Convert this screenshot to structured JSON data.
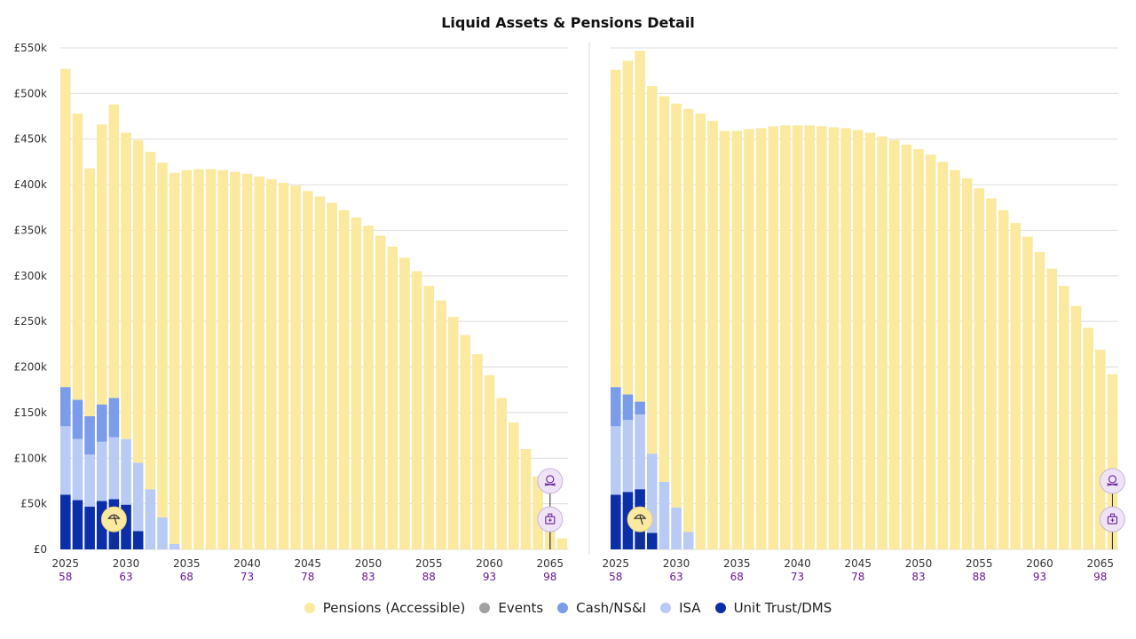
{
  "title": "Liquid Assets & Pensions Detail",
  "colors": {
    "pensions": "#fbe9a0",
    "events": "#a0a0a0",
    "cash": "#7b9ce8",
    "isa": "#b9cbf5",
    "unit_trust": "#0a2fa8",
    "event_marker_yellow": "#fbe9a0",
    "event_marker_lilac": "#efe4f7",
    "age_text": "#6a1b9a"
  },
  "legend": [
    {
      "label": "Pensions (Accessible)",
      "color": "#fbe9a0"
    },
    {
      "label": "Events",
      "color": "#a0a0a0"
    },
    {
      "label": "Cash/NS&I",
      "color": "#7b9ce8"
    },
    {
      "label": "ISA",
      "color": "#b9cbf5"
    },
    {
      "label": "Unit Trust/DMS",
      "color": "#0a2fa8"
    }
  ],
  "y_ticks": [
    "£0",
    "£50k",
    "£100k",
    "£150k",
    "£200k",
    "£250k",
    "£300k",
    "£350k",
    "£400k",
    "£450k",
    "£500k",
    "£550k"
  ],
  "x_tick_labels": [
    {
      "year": "2025",
      "age": "58"
    },
    {
      "year": "2030",
      "age": "63"
    },
    {
      "year": "2035",
      "age": "68"
    },
    {
      "year": "2040",
      "age": "73"
    },
    {
      "year": "2045",
      "age": "78"
    },
    {
      "year": "2050",
      "age": "83"
    },
    {
      "year": "2055",
      "age": "88"
    },
    {
      "year": "2060",
      "age": "93"
    },
    {
      "year": "2065",
      "age": "98"
    }
  ],
  "event_icons": {
    "retire": "beach-umbrella-icon",
    "death": "skull-icon",
    "care": "medical-bag-icon"
  },
  "chart_data": [
    {
      "type": "bar",
      "stacked": true,
      "title": "Liquid Assets & Pensions Detail",
      "x_start": 2025,
      "x_end": 2066,
      "ylim": [
        0,
        550000
      ],
      "grid": true,
      "legend_position": "bottom",
      "series": [
        {
          "name": "Unit Trust/DMS",
          "values": [
            60000,
            54000,
            47000,
            53000,
            55000,
            49000,
            20000,
            0,
            0,
            0,
            0,
            0,
            0,
            0,
            0,
            0,
            0,
            0,
            0,
            0,
            0,
            0,
            0,
            0,
            0,
            0,
            0,
            0,
            0,
            0,
            0,
            0,
            0,
            0,
            0,
            0,
            0,
            0,
            0,
            0,
            0,
            0
          ]
        },
        {
          "name": "ISA",
          "values": [
            75000,
            67000,
            57000,
            65000,
            68000,
            72000,
            75000,
            66000,
            35000,
            6000,
            0,
            0,
            0,
            0,
            0,
            0,
            0,
            0,
            0,
            0,
            0,
            0,
            0,
            0,
            0,
            0,
            0,
            0,
            0,
            0,
            0,
            0,
            0,
            0,
            0,
            0,
            0,
            0,
            0,
            0,
            0,
            0
          ]
        },
        {
          "name": "Cash/NS&I",
          "values": [
            43000,
            43000,
            42000,
            41000,
            43000,
            0,
            0,
            0,
            0,
            0,
            0,
            0,
            0,
            0,
            0,
            0,
            0,
            0,
            0,
            0,
            0,
            0,
            0,
            0,
            0,
            0,
            0,
            0,
            0,
            0,
            0,
            0,
            0,
            0,
            0,
            0,
            0,
            0,
            0,
            0,
            0,
            0
          ]
        },
        {
          "name": "Events",
          "values": [
            0,
            0,
            0,
            0,
            0,
            0,
            0,
            0,
            0,
            0,
            0,
            0,
            0,
            0,
            0,
            0,
            0,
            0,
            0,
            0,
            0,
            0,
            0,
            0,
            0,
            0,
            0,
            0,
            0,
            0,
            0,
            0,
            0,
            0,
            0,
            0,
            0,
            0,
            0,
            0,
            0,
            0
          ]
        },
        {
          "name": "Pensions (Accessible)",
          "values": [
            349000,
            314000,
            272000,
            307000,
            322000,
            336000,
            354000,
            370000,
            389000,
            407000,
            416000,
            417000,
            417000,
            416000,
            414000,
            412000,
            409000,
            406000,
            402000,
            399000,
            393000,
            387000,
            380000,
            372000,
            364000,
            355000,
            344000,
            332000,
            320000,
            305000,
            289000,
            273000,
            255000,
            235000,
            214000,
            191000,
            166000,
            139000,
            110000,
            80000,
            46000,
            12000
          ]
        }
      ],
      "events": [
        {
          "year": 2029,
          "icon": "beach-umbrella-icon",
          "value": 33000
        },
        {
          "year": 2065,
          "icon": "skull-icon",
          "value": 75000
        },
        {
          "year": 2065,
          "icon": "medical-bag-icon",
          "value": 33000
        }
      ]
    },
    {
      "type": "bar",
      "stacked": true,
      "title": "Liquid Assets & Pensions Detail",
      "x_start": 2025,
      "x_end": 2066,
      "ylim": [
        0,
        550000
      ],
      "grid": true,
      "legend_position": "bottom",
      "series": [
        {
          "name": "Unit Trust/DMS",
          "values": [
            60000,
            63000,
            66000,
            18000,
            0,
            0,
            0,
            0,
            0,
            0,
            0,
            0,
            0,
            0,
            0,
            0,
            0,
            0,
            0,
            0,
            0,
            0,
            0,
            0,
            0,
            0,
            0,
            0,
            0,
            0,
            0,
            0,
            0,
            0,
            0,
            0,
            0,
            0,
            0,
            0,
            0,
            0
          ]
        },
        {
          "name": "ISA",
          "values": [
            75000,
            79000,
            82000,
            87000,
            74000,
            46000,
            19000,
            0,
            0,
            0,
            0,
            0,
            0,
            0,
            0,
            0,
            0,
            0,
            0,
            0,
            0,
            0,
            0,
            0,
            0,
            0,
            0,
            0,
            0,
            0,
            0,
            0,
            0,
            0,
            0,
            0,
            0,
            0,
            0,
            0,
            0,
            0
          ]
        },
        {
          "name": "Cash/NS&I",
          "values": [
            43000,
            28000,
            14000,
            0,
            0,
            0,
            0,
            0,
            0,
            0,
            0,
            0,
            0,
            0,
            0,
            0,
            0,
            0,
            0,
            0,
            0,
            0,
            0,
            0,
            0,
            0,
            0,
            0,
            0,
            0,
            0,
            0,
            0,
            0,
            0,
            0,
            0,
            0,
            0,
            0,
            0,
            0
          ]
        },
        {
          "name": "Events",
          "values": [
            0,
            0,
            0,
            0,
            0,
            0,
            0,
            0,
            0,
            0,
            0,
            0,
            0,
            0,
            0,
            0,
            0,
            0,
            0,
            0,
            0,
            0,
            0,
            0,
            0,
            0,
            0,
            0,
            0,
            0,
            0,
            0,
            0,
            0,
            0,
            0,
            0,
            0,
            0,
            0,
            0,
            0
          ]
        },
        {
          "name": "Pensions (Accessible)",
          "values": [
            348000,
            366000,
            385000,
            403000,
            423000,
            443000,
            464000,
            478000,
            470000,
            459000,
            459000,
            461000,
            462000,
            464000,
            465000,
            465000,
            465000,
            464000,
            463000,
            462000,
            460000,
            457000,
            453000,
            449000,
            444000,
            439000,
            433000,
            425000,
            416000,
            407000,
            396000,
            385000,
            372000,
            358000,
            343000,
            326000,
            308000,
            289000,
            267000,
            243000,
            219000,
            192000
          ]
        }
      ],
      "events": [
        {
          "year": 2027,
          "icon": "beach-umbrella-icon",
          "value": 33000
        },
        {
          "year": 2066,
          "icon": "skull-icon",
          "value": 75000
        },
        {
          "year": 2066,
          "icon": "medical-bag-icon",
          "value": 33000
        }
      ]
    }
  ]
}
